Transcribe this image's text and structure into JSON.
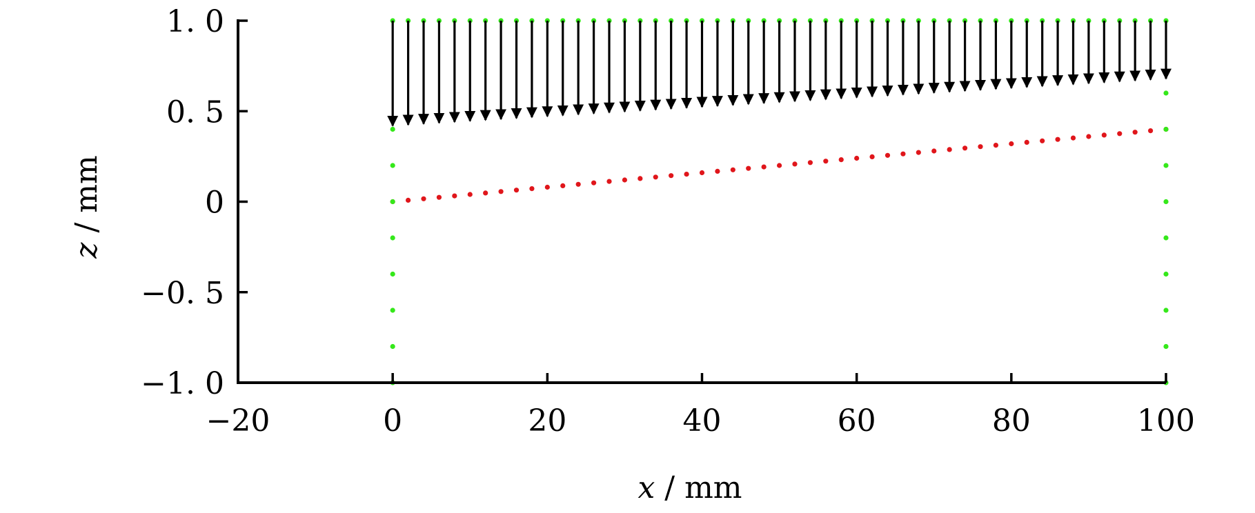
{
  "chart_data": {
    "type": "scatter",
    "title": "",
    "xlabel": {
      "var": "x",
      "unit": "mm"
    },
    "ylabel": {
      "var": "z",
      "unit": "mm"
    },
    "xlim": [
      -20,
      100
    ],
    "ylim": [
      -1.0,
      1.0
    ],
    "xticks": [
      -20,
      0,
      20,
      40,
      60,
      80,
      100
    ],
    "xtick_labels": [
      "−20",
      "0",
      "20",
      "40",
      "60",
      "80",
      "100"
    ],
    "yticks": [
      1.0,
      0.5,
      0,
      -0.5,
      -1.0
    ],
    "ytick_labels": [
      "1. 0",
      "0. 5",
      "0",
      "−0. 5",
      "−1. 0"
    ],
    "grid": false,
    "legend": "none",
    "series": [
      {
        "kind": "points",
        "color": "#e0161b",
        "x_start": 0,
        "x_end": 100,
        "count": 51,
        "y_start": 0.0,
        "y_end": 0.4
      },
      {
        "kind": "points",
        "color": "#35e81a",
        "segments": [
          {
            "x": [
              0,
              100
            ],
            "y": 1.0,
            "count": 51
          },
          {
            "x": 0,
            "y": [
              -1.0,
              0.4
            ],
            "step": 0.2
          },
          {
            "x": 100,
            "y": [
              -1.0,
              0.6
            ],
            "step": 0.2
          }
        ]
      },
      {
        "kind": "arrows",
        "color": "#000000",
        "x_start": 0,
        "x_end": 100,
        "count": 51,
        "y_tail": 1.0,
        "y_head_start": 0.42,
        "y_head_end": 0.68
      }
    ]
  }
}
